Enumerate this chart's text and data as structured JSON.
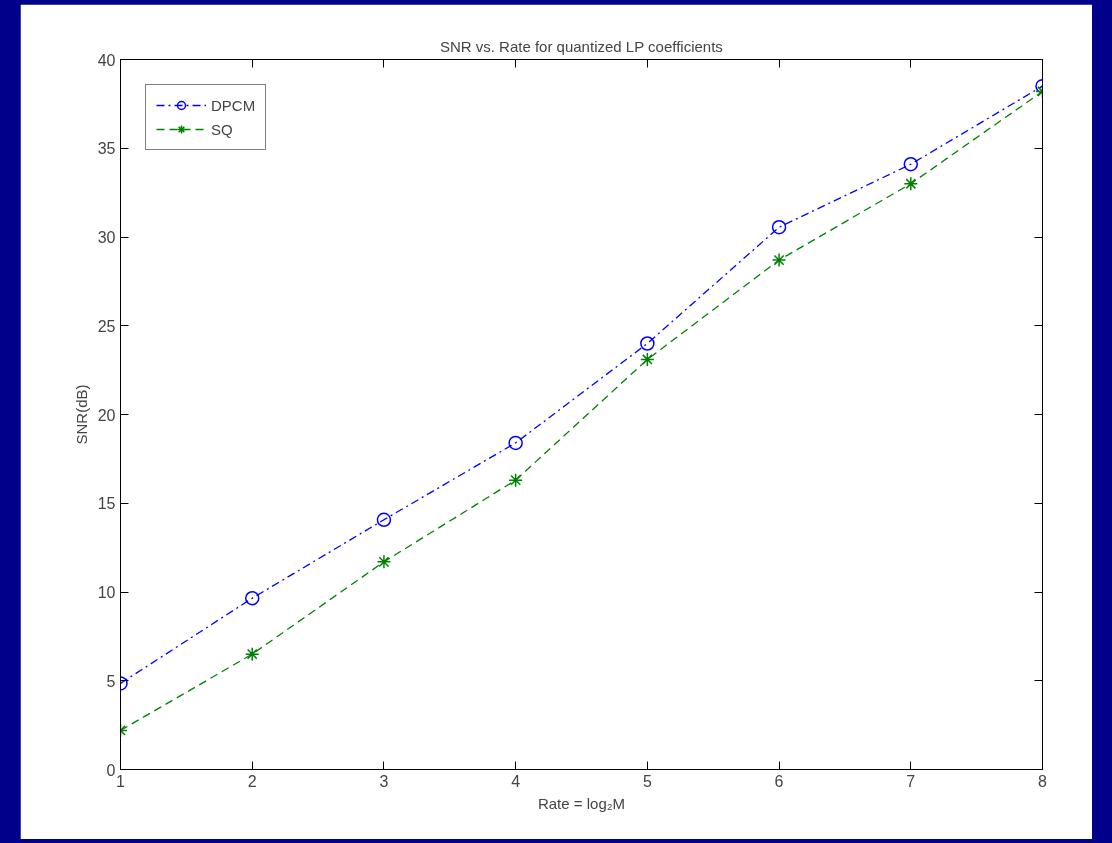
{
  "chart_data": {
    "type": "line",
    "title": "SNR vs. Rate for quantized LP coefficients",
    "xlabel": "Rate = log₂M",
    "ylabel": "SNR(dB)",
    "x": [
      1,
      2,
      3,
      4,
      5,
      6,
      7,
      8
    ],
    "series": [
      {
        "name": "DPCM",
        "color": "#0000ff",
        "marker": "circle",
        "line_style": "dashdot",
        "values": [
          4.85,
          9.65,
          14.07,
          18.4,
          24.0,
          30.55,
          34.1,
          38.5
        ]
      },
      {
        "name": "SQ",
        "color": "#008000",
        "marker": "cross",
        "line_style": "dashed",
        "values": [
          2.2,
          6.5,
          11.7,
          16.3,
          23.1,
          28.7,
          33.0,
          38.2
        ]
      }
    ],
    "xlim": [
      1,
      8
    ],
    "xticks": [
      1,
      2,
      3,
      4,
      5,
      6,
      7,
      8
    ],
    "ylim": [
      0,
      40
    ],
    "yticks": [
      0,
      5,
      10,
      15,
      20,
      25,
      30,
      35,
      40
    ],
    "grid": false,
    "legend": "top left"
  }
}
